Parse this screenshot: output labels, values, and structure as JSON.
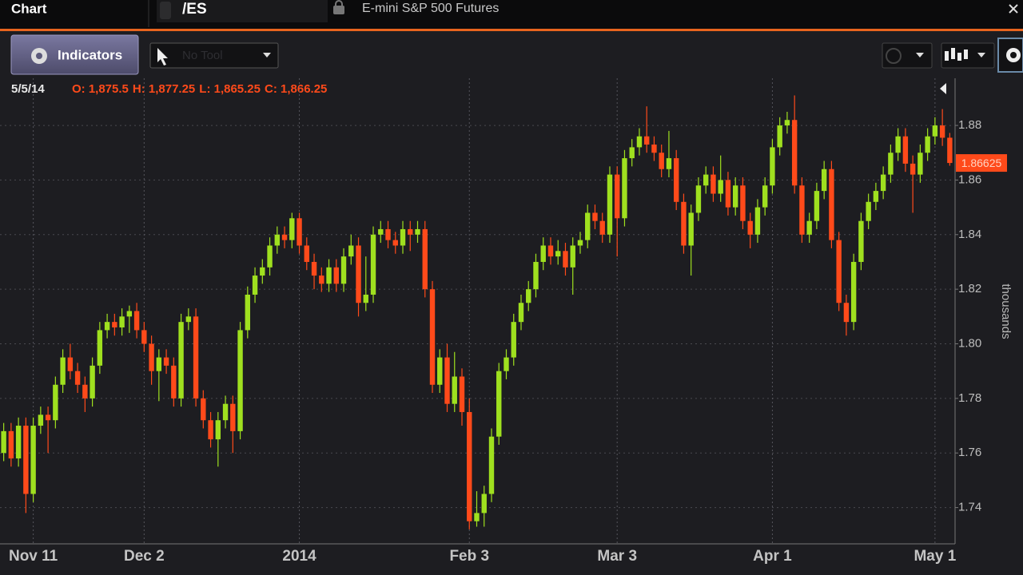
{
  "header": {
    "title": "Chart",
    "symbol": "/ES",
    "description": "E-mini S&P 500 Futures"
  },
  "toolbar": {
    "indicators": "Indicators",
    "tool": "No Tool"
  },
  "chart_data": {
    "type": "candlestick",
    "date_label": "5/5/14",
    "ohlc_labels": [
      "O: 1,875.5",
      "H: 1,877.25",
      "L: 1,865.25",
      "C: 1,866.25"
    ],
    "y_label": "thousands",
    "up_color": "#9fe01f",
    "down_color": "#ff4a1a",
    "grid": true,
    "categories": [
      null,
      null,
      null,
      null,
      "Nov 11",
      null,
      null,
      null,
      null,
      null,
      null,
      null,
      null,
      null,
      null,
      null,
      null,
      null,
      null,
      "Dec 2",
      null,
      null,
      null,
      null,
      null,
      null,
      null,
      null,
      null,
      null,
      null,
      null,
      null,
      null,
      null,
      null,
      null,
      null,
      null,
      null,
      "2014",
      null,
      null,
      null,
      null,
      null,
      null,
      null,
      null,
      null,
      null,
      null,
      null,
      null,
      null,
      null,
      null,
      null,
      null,
      null,
      null,
      null,
      null,
      "Feb 3",
      null,
      null,
      null,
      null,
      null,
      null,
      null,
      null,
      null,
      null,
      null,
      null,
      null,
      null,
      null,
      null,
      null,
      null,
      null,
      "Mar 3",
      null,
      null,
      null,
      null,
      null,
      null,
      null,
      null,
      null,
      null,
      null,
      null,
      null,
      null,
      null,
      null,
      null,
      null,
      null,
      null,
      "Apr 1",
      null,
      null,
      null,
      null,
      null,
      null,
      null,
      null,
      null,
      null,
      null,
      null,
      null,
      null,
      null,
      null,
      null,
      null,
      null,
      null,
      null,
      "May 1",
      null,
      null
    ],
    "open": [
      1.76,
      1.768,
      1.758,
      1.77,
      1.745,
      1.77,
      1.774,
      1.772,
      1.785,
      1.795,
      1.79,
      1.785,
      1.78,
      1.792,
      1.805,
      1.808,
      1.806,
      1.81,
      1.812,
      1.805,
      1.8,
      1.79,
      1.795,
      1.792,
      1.78,
      1.808,
      1.81,
      1.78,
      1.772,
      1.765,
      1.772,
      1.778,
      1.768,
      1.805,
      1.818,
      1.825,
      1.828,
      1.836,
      1.84,
      1.838,
      1.846,
      1.836,
      1.83,
      1.825,
      1.822,
      1.828,
      1.822,
      1.832,
      1.836,
      1.815,
      1.818,
      1.84,
      1.842,
      1.838,
      1.836,
      1.842,
      1.84,
      1.842,
      1.82,
      1.785,
      1.795,
      1.778,
      1.788,
      1.775,
      1.735,
      1.738,
      1.745,
      1.766,
      1.79,
      1.795,
      1.808,
      1.815,
      1.82,
      1.83,
      1.836,
      1.832,
      1.834,
      1.828,
      1.836,
      1.838,
      1.848,
      1.845,
      1.84,
      1.862,
      1.846,
      1.868,
      1.872,
      1.876,
      1.873,
      1.87,
      1.864,
      1.868,
      1.852,
      1.836,
      1.848,
      1.858,
      1.862,
      1.855,
      1.86,
      1.85,
      1.858,
      1.845,
      1.84,
      1.85,
      1.858,
      1.872,
      1.88,
      1.882,
      1.858,
      1.84,
      1.845,
      1.856,
      1.864,
      1.838,
      1.815,
      1.808,
      1.83,
      1.845,
      1.852,
      1.856,
      1.862,
      1.87,
      1.876,
      1.866,
      1.862,
      1.87,
      1.876,
      1.88,
      1.8755
    ],
    "high": [
      1.771,
      1.771,
      1.773,
      1.773,
      1.773,
      1.777,
      1.777,
      1.788,
      1.798,
      1.8,
      1.793,
      1.788,
      1.795,
      1.808,
      1.811,
      1.811,
      1.813,
      1.814,
      1.815,
      1.808,
      1.803,
      1.798,
      1.798,
      1.795,
      1.811,
      1.813,
      1.813,
      1.783,
      1.775,
      1.775,
      1.781,
      1.781,
      1.808,
      1.821,
      1.828,
      1.831,
      1.839,
      1.843,
      1.843,
      1.848,
      1.848,
      1.839,
      1.833,
      1.828,
      1.831,
      1.831,
      1.835,
      1.84,
      1.839,
      1.832,
      1.843,
      1.845,
      1.845,
      1.841,
      1.845,
      1.845,
      1.845,
      1.845,
      1.823,
      1.798,
      1.8,
      1.797,
      1.791,
      1.78,
      1.746,
      1.748,
      1.769,
      1.793,
      1.798,
      1.811,
      1.818,
      1.823,
      1.833,
      1.839,
      1.839,
      1.838,
      1.837,
      1.839,
      1.841,
      1.851,
      1.851,
      1.848,
      1.865,
      1.865,
      1.871,
      1.875,
      1.879,
      1.887,
      1.876,
      1.873,
      1.878,
      1.871,
      1.855,
      1.851,
      1.861,
      1.865,
      1.865,
      1.869,
      1.863,
      1.861,
      1.861,
      1.848,
      1.853,
      1.861,
      1.875,
      1.883,
      1.885,
      1.891,
      1.861,
      1.848,
      1.859,
      1.867,
      1.867,
      1.841,
      1.818,
      1.833,
      1.848,
      1.855,
      1.859,
      1.865,
      1.873,
      1.879,
      1.879,
      1.869,
      1.873,
      1.879,
      1.883,
      1.886,
      1.87725
    ],
    "low": [
      1.757,
      1.755,
      1.755,
      1.738,
      1.742,
      1.767,
      1.76,
      1.769,
      1.782,
      1.787,
      1.782,
      1.775,
      1.777,
      1.789,
      1.802,
      1.803,
      1.803,
      1.804,
      1.802,
      1.797,
      1.785,
      1.779,
      1.789,
      1.777,
      1.777,
      1.805,
      1.777,
      1.769,
      1.762,
      1.755,
      1.769,
      1.76,
      1.765,
      1.802,
      1.815,
      1.822,
      1.825,
      1.833,
      1.835,
      1.835,
      1.833,
      1.827,
      1.82,
      1.819,
      1.819,
      1.819,
      1.819,
      1.829,
      1.81,
      1.812,
      1.815,
      1.837,
      1.835,
      1.833,
      1.833,
      1.834,
      1.837,
      1.817,
      1.782,
      1.782,
      1.775,
      1.775,
      1.77,
      1.732,
      1.733,
      1.733,
      1.742,
      1.763,
      1.787,
      1.792,
      1.805,
      1.812,
      1.817,
      1.827,
      1.829,
      1.829,
      1.825,
      1.818,
      1.833,
      1.835,
      1.842,
      1.837,
      1.837,
      1.832,
      1.843,
      1.865,
      1.869,
      1.87,
      1.867,
      1.861,
      1.861,
      1.849,
      1.833,
      1.825,
      1.845,
      1.855,
      1.852,
      1.852,
      1.847,
      1.847,
      1.842,
      1.835,
      1.837,
      1.847,
      1.855,
      1.869,
      1.877,
      1.855,
      1.837,
      1.837,
      1.842,
      1.853,
      1.835,
      1.812,
      1.803,
      1.805,
      1.827,
      1.842,
      1.849,
      1.853,
      1.859,
      1.867,
      1.863,
      1.848,
      1.859,
      1.867,
      1.873,
      1.8725,
      1.86525
    ],
    "close": [
      1.768,
      1.758,
      1.77,
      1.745,
      1.77,
      1.774,
      1.772,
      1.785,
      1.795,
      1.79,
      1.785,
      1.78,
      1.792,
      1.805,
      1.808,
      1.806,
      1.81,
      1.812,
      1.805,
      1.8,
      1.79,
      1.795,
      1.792,
      1.78,
      1.808,
      1.81,
      1.78,
      1.772,
      1.765,
      1.772,
      1.778,
      1.768,
      1.805,
      1.818,
      1.825,
      1.828,
      1.836,
      1.84,
      1.838,
      1.846,
      1.836,
      1.83,
      1.825,
      1.822,
      1.828,
      1.822,
      1.832,
      1.836,
      1.815,
      1.818,
      1.84,
      1.842,
      1.838,
      1.836,
      1.842,
      1.84,
      1.842,
      1.82,
      1.785,
      1.795,
      1.778,
      1.788,
      1.775,
      1.735,
      1.738,
      1.745,
      1.766,
      1.79,
      1.795,
      1.808,
      1.815,
      1.82,
      1.83,
      1.836,
      1.832,
      1.834,
      1.828,
      1.836,
      1.838,
      1.848,
      1.845,
      1.84,
      1.862,
      1.846,
      1.868,
      1.872,
      1.876,
      1.873,
      1.87,
      1.864,
      1.868,
      1.852,
      1.836,
      1.848,
      1.858,
      1.862,
      1.855,
      1.86,
      1.85,
      1.858,
      1.845,
      1.84,
      1.85,
      1.858,
      1.872,
      1.88,
      1.882,
      1.858,
      1.84,
      1.845,
      1.856,
      1.864,
      1.838,
      1.815,
      1.808,
      1.83,
      1.845,
      1.852,
      1.856,
      1.862,
      1.87,
      1.876,
      1.866,
      1.862,
      1.87,
      1.876,
      1.88,
      1.8755,
      1.86625
    ],
    "ylim": [
      1.727,
      1.8967
    ],
    "yticks": [
      1.74,
      1.76,
      1.78,
      {
        "value": 1.8,
        "label": "1.80"
      },
      1.82,
      1.84,
      1.86,
      1.88
    ]
  }
}
